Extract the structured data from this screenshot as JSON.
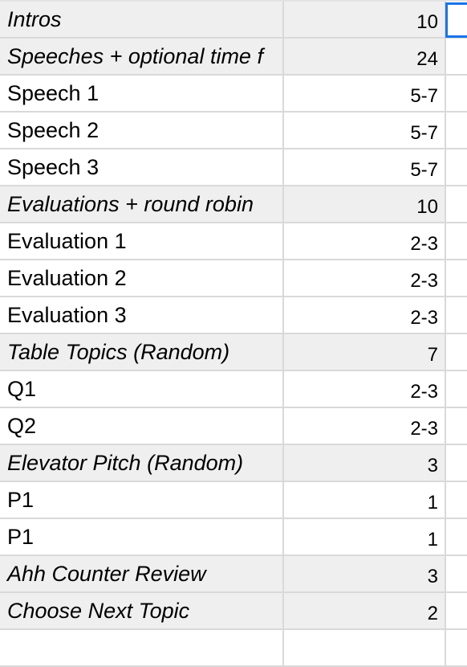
{
  "rows": [
    {
      "label": "Intros",
      "time": "10",
      "section": true
    },
    {
      "label": "Speeches + optional time f",
      "time": "24",
      "section": true
    },
    {
      "label": "Speech 1",
      "time": "5-7",
      "section": false
    },
    {
      "label": "Speech 2",
      "time": "5-7",
      "section": false
    },
    {
      "label": "Speech 3",
      "time": "5-7",
      "section": false
    },
    {
      "label": "Evaluations + round robin",
      "time": "10",
      "section": true
    },
    {
      "label": "Evaluation 1",
      "time": "2-3",
      "section": false
    },
    {
      "label": "Evaluation 2",
      "time": "2-3",
      "section": false
    },
    {
      "label": "Evaluation 3",
      "time": "2-3",
      "section": false
    },
    {
      "label": "Table Topics (Random)",
      "time": "7",
      "section": true
    },
    {
      "label": "Q1",
      "time": "2-3",
      "section": false
    },
    {
      "label": "Q2",
      "time": "2-3",
      "section": false
    },
    {
      "label": "Elevator Pitch (Random)",
      "time": "3",
      "section": true
    },
    {
      "label": "P1",
      "time": "1",
      "section": false
    },
    {
      "label": "P1",
      "time": "1",
      "section": false
    },
    {
      "label": "Ahh Counter Review",
      "time": "3",
      "section": true
    },
    {
      "label": "Choose Next Topic",
      "time": "2",
      "section": true
    },
    {
      "label": "",
      "time": "",
      "section": false
    }
  ],
  "colors": {
    "section_bg": "#efefef",
    "grid": "#d9d9d9",
    "selection": "#1a73e8"
  }
}
